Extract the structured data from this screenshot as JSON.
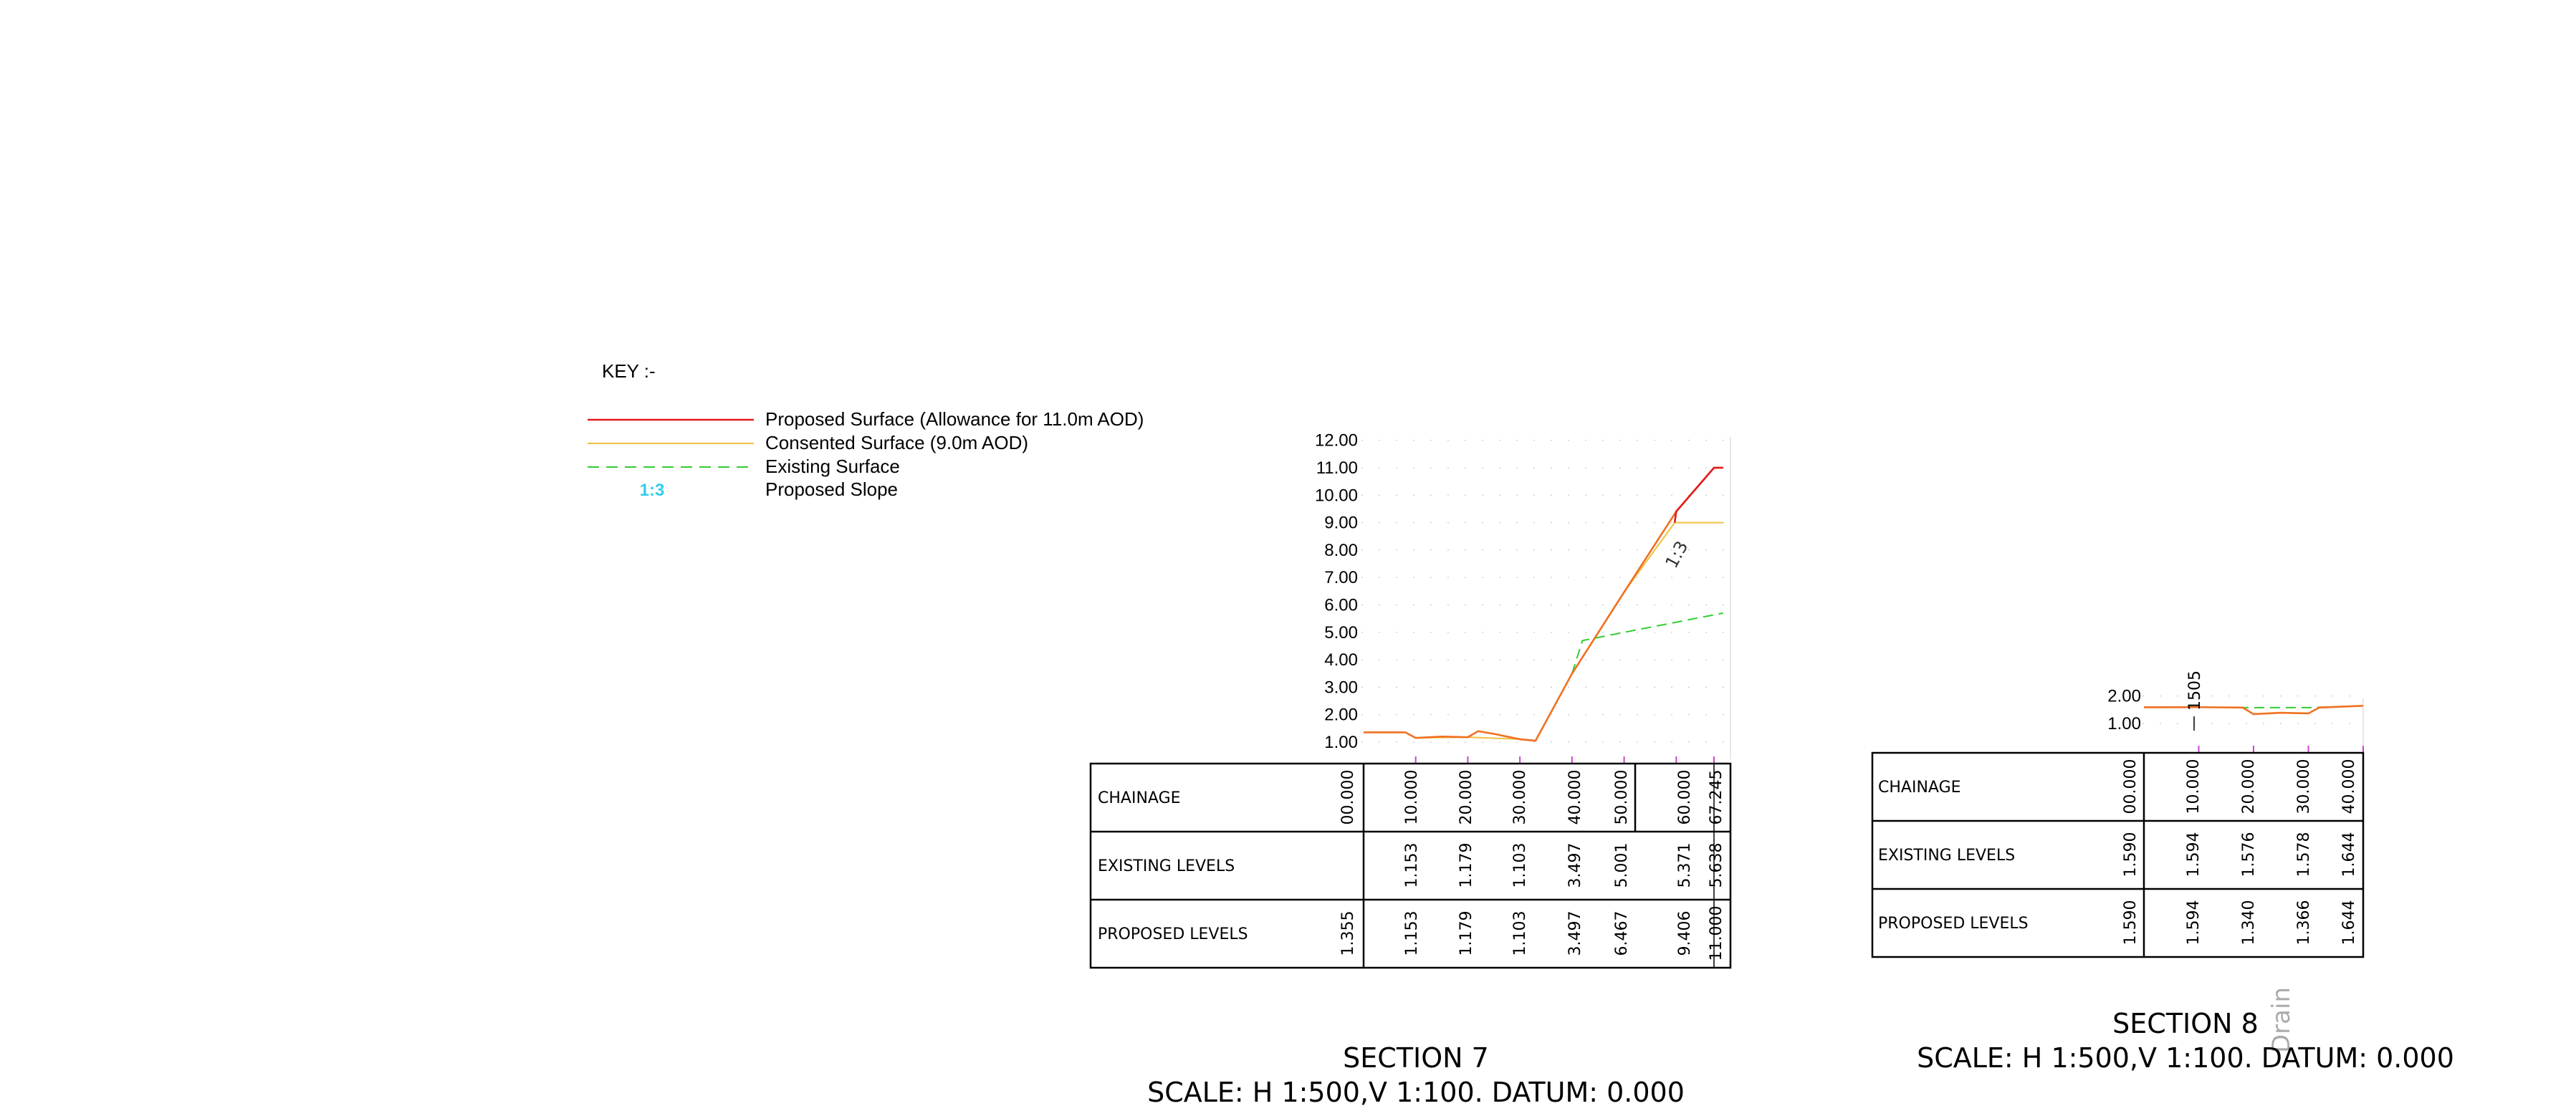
{
  "key": {
    "title": "KEY :-",
    "items": [
      {
        "label": "Proposed Surface (Allowance for 11.0m AOD)",
        "color": "#e31a1c",
        "style": "solid"
      },
      {
        "label": "Consented Surface (9.0m AOD)",
        "color": "#f0c040",
        "style": "solid"
      },
      {
        "label": "Existing Surface",
        "color": "#33cc33",
        "style": "dashed"
      },
      {
        "label": "Proposed Slope",
        "symbol": "1:3",
        "color": "#33ccee",
        "style": "text"
      }
    ]
  },
  "colors": {
    "proposed": "#e31a1c",
    "consented": "#f0c040",
    "existing": "#33cc33",
    "overlap": "#f07020",
    "tick_mark": "#cc44cc",
    "line": "#000000"
  },
  "sections": [
    {
      "name": "SECTION 7",
      "scale": "SCALE: H 1:500,V 1:100. DATUM: 0.000",
      "y_ticks": [
        "1.00",
        "2.00",
        "3.00",
        "4.00",
        "5.00",
        "6.00",
        "7.00",
        "8.00",
        "9.00",
        "10.00",
        "11.00",
        "12.00"
      ],
      "slope_label": "1:3",
      "row_labels": [
        "CHAINAGE",
        "EXISTING LEVELS",
        "PROPOSED LEVELS"
      ],
      "chainage": [
        "00.000",
        "10.000",
        "20.000",
        "30.000",
        "40.000",
        "50.000",
        "60.000",
        "67.245"
      ],
      "existing_levels": [
        "",
        "1.153",
        "1.179",
        "1.103",
        "3.497",
        "5.001",
        "5.371",
        "5.638"
      ],
      "proposed_levels": [
        "1.355",
        "1.153",
        "1.179",
        "1.103",
        "3.497",
        "6.467",
        "9.406",
        "11.000"
      ]
    },
    {
      "name": "SECTION 8",
      "scale": "SCALE: H 1:500,V 1:100. DATUM: 0.000",
      "y_ticks": [
        "1.00",
        "2.00"
      ],
      "annotation": "1505",
      "drain_label": "Drain",
      "row_labels": [
        "CHAINAGE",
        "EXISTING LEVELS",
        "PROPOSED LEVELS"
      ],
      "chainage": [
        "00.000",
        "10.000",
        "20.000",
        "30.000",
        "40.000"
      ],
      "existing_levels": [
        "1.590",
        "1.594",
        "1.576",
        "1.578",
        "1.644"
      ],
      "proposed_levels": [
        "1.590",
        "1.594",
        "1.340",
        "1.366",
        "1.644"
      ]
    }
  ],
  "chart_data": [
    {
      "type": "line",
      "title": "SECTION 7",
      "xlabel": "CHAINAGE",
      "ylabel": "",
      "ylim": [
        0,
        12
      ],
      "xlim": [
        0,
        67.245
      ],
      "series": [
        {
          "name": "Proposed Surface (Allowance for 11.0m AOD)",
          "x": [
            0,
            8,
            10,
            15,
            20,
            22,
            25,
            30,
            33,
            40,
            50,
            60,
            67.245,
            69
          ],
          "y": [
            1.355,
            1.355,
            1.153,
            1.2,
            1.179,
            1.4,
            1.3,
            1.103,
            1.05,
            3.497,
            6.467,
            9.406,
            11.0,
            11.0
          ]
        },
        {
          "name": "Consented Surface (9.0m AOD)",
          "x": [
            0,
            8,
            10,
            20,
            30,
            33,
            40,
            50,
            59.7,
            69
          ],
          "y": [
            1.355,
            1.355,
            1.153,
            1.179,
            1.103,
            1.05,
            3.497,
            6.467,
            9.0,
            9.0
          ]
        },
        {
          "name": "Existing Surface",
          "x": [
            40,
            42,
            50,
            60,
            67.245,
            69
          ],
          "y": [
            3.497,
            4.7,
            5.001,
            5.371,
            5.638,
            5.7
          ]
        }
      ]
    },
    {
      "type": "line",
      "title": "SECTION 8",
      "xlabel": "CHAINAGE",
      "ylabel": "",
      "ylim": [
        0,
        2
      ],
      "xlim": [
        0,
        40
      ],
      "series": [
        {
          "name": "Proposed Surface (Allowance for 11.0m AOD)",
          "x": [
            0,
            10,
            18,
            20,
            25,
            30,
            32,
            40
          ],
          "y": [
            1.59,
            1.594,
            1.58,
            1.34,
            1.39,
            1.366,
            1.58,
            1.644
          ]
        },
        {
          "name": "Existing Surface",
          "x": [
            0,
            10,
            20,
            30,
            40
          ],
          "y": [
            1.59,
            1.594,
            1.576,
            1.578,
            1.644
          ]
        }
      ]
    }
  ]
}
